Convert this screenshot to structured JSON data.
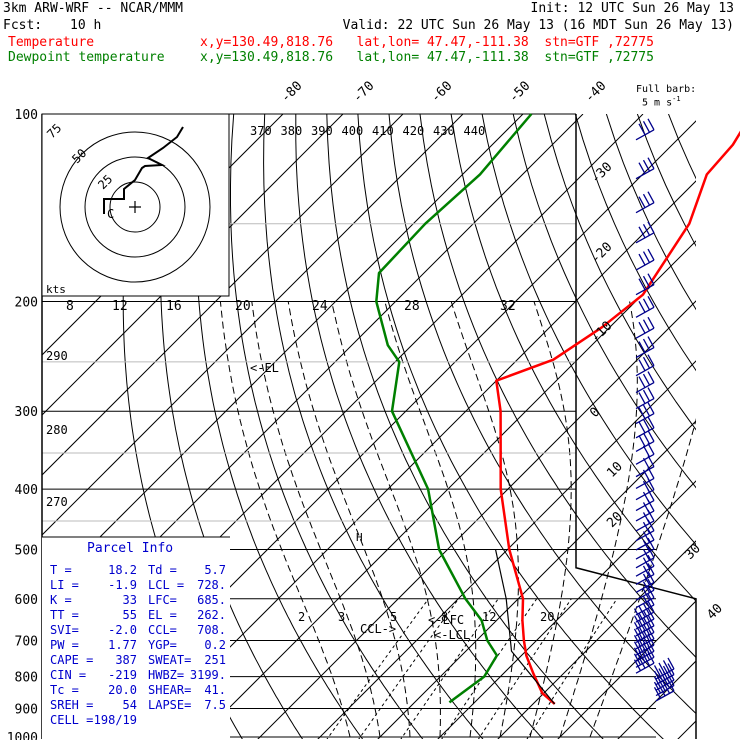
{
  "header": {
    "model": "3km ARW-WRF -- NCAR/MMM",
    "init": "Init: 12 UTC Sun 26 May 13",
    "fcst_label": "Fcst:",
    "fcst_value": "10 h",
    "valid": "Valid: 22 UTC Sun 26 May 13 (16 MDT Sun 26 May 13)",
    "temp_label": "Temperature",
    "temp_info": "x,y=130.49,818.76   lat,lon= 47.47,-111.38  stn=GTF ,72775",
    "dew_label": "Dewpoint temperature",
    "dew_info": "x,y=130.49,818.76   lat,lon= 47.47,-111.38  stn=GTF ,72775",
    "colors": {
      "temperature": "#ff0000",
      "dewpoint": "#008000",
      "info_text": "#000000"
    }
  },
  "barb_legend": {
    "line1": "Full barb:",
    "line2": "5 m s",
    "sup": "-1"
  },
  "chart_data": {
    "type": "line",
    "diagram": "skew-T log-P",
    "pressure_levels": [
      100,
      200,
      300,
      400,
      500,
      600,
      700,
      800,
      900,
      1000
    ],
    "pressure_labels": [
      "100",
      "200",
      "300",
      "400",
      "500",
      "600",
      "700",
      "800",
      "900",
      "1000"
    ],
    "top_isotherm_labels": [
      "-80",
      "-70",
      "-60",
      "-50",
      "-40"
    ],
    "right_isotherm_labels": [
      "-30",
      "-20",
      "-10",
      "0",
      "10",
      "20",
      "30",
      "40"
    ],
    "theta_labels_top": [
      "370",
      "380",
      "390",
      "400",
      "410",
      "420",
      "430",
      "440"
    ],
    "theta_labels_left": [
      "290",
      "280",
      "270"
    ],
    "mixing_ratio_labels": [
      "2",
      "3",
      "5",
      "8",
      "12",
      "20"
    ],
    "series": [
      {
        "name": "Temperature",
        "color": "#ff0000",
        "points": [
          [
            885,
            23.6
          ],
          [
            850,
            19.7
          ],
          [
            790,
            14.9
          ],
          [
            740,
            10.8
          ],
          [
            700,
            7.9
          ],
          [
            650,
            4.3
          ],
          [
            600,
            0.8
          ],
          [
            500,
            -9.7
          ],
          [
            400,
            -21.2
          ],
          [
            300,
            -34.2
          ],
          [
            268,
            -40.0
          ],
          [
            248,
            -34.0
          ],
          [
            220,
            -31.3
          ],
          [
            195,
            -29.9
          ],
          [
            150,
            -34.0
          ],
          [
            125,
            -39.3
          ],
          [
            112,
            -39.9
          ],
          [
            100,
            -41.9
          ]
        ]
      },
      {
        "name": "Dewpoint temperature",
        "color": "#008000",
        "points": [
          [
            880,
            5.8
          ],
          [
            800,
            7.3
          ],
          [
            740,
            5.9
          ],
          [
            700,
            1.8
          ],
          [
            650,
            -2.5
          ],
          [
            600,
            -8.8
          ],
          [
            500,
            -21.4
          ],
          [
            400,
            -33.3
          ],
          [
            300,
            -52.3
          ],
          [
            250,
            -59.3
          ],
          [
            235,
            -64.0
          ],
          [
            200,
            -73.2
          ],
          [
            180,
            -77.5
          ],
          [
            150,
            -78.0
          ],
          [
            125,
            -77.1
          ],
          [
            100,
            -78.6
          ]
        ]
      }
    ],
    "markers": {
      "el_label": "<-EL",
      "lfc_label": "<-LFC",
      "lcl_label": "<-LCL",
      "ccl_label": "CCL->",
      "h_label": "H"
    }
  },
  "hodograph": {
    "speed_unit": "kts",
    "ring_labels": [
      "75",
      "50",
      "25"
    ],
    "speed_ticks": [
      "8",
      "12",
      "16",
      "20",
      "24",
      "28",
      "32"
    ],
    "center_marker": "C"
  },
  "parcel_info": {
    "title": "Parcel Info",
    "rows": [
      [
        "T  =",
        "18.2",
        "Td =",
        "5.7"
      ],
      [
        "LI =",
        "-1.9",
        "LCL =",
        "728."
      ],
      [
        "K  =",
        "33",
        "LFC=",
        "685."
      ],
      [
        "TT =",
        "55",
        "EL =",
        "262."
      ],
      [
        "SVI=",
        "-2.0",
        "CCL=",
        "708."
      ],
      [
        "PW =",
        "1.77",
        "YGP=",
        "0.2"
      ],
      [
        "CAPE =",
        "387",
        "SWEAT=",
        "251"
      ],
      [
        "CIN =",
        "-219",
        "HWBZ=",
        "3199."
      ],
      [
        "Tc =",
        "20.0",
        "SHEAR=",
        "41."
      ],
      [
        "SREH =",
        "54",
        "LAPSE=",
        "7.5"
      ],
      [
        "CELL =",
        "198/19",
        "",
        ""
      ]
    ]
  }
}
